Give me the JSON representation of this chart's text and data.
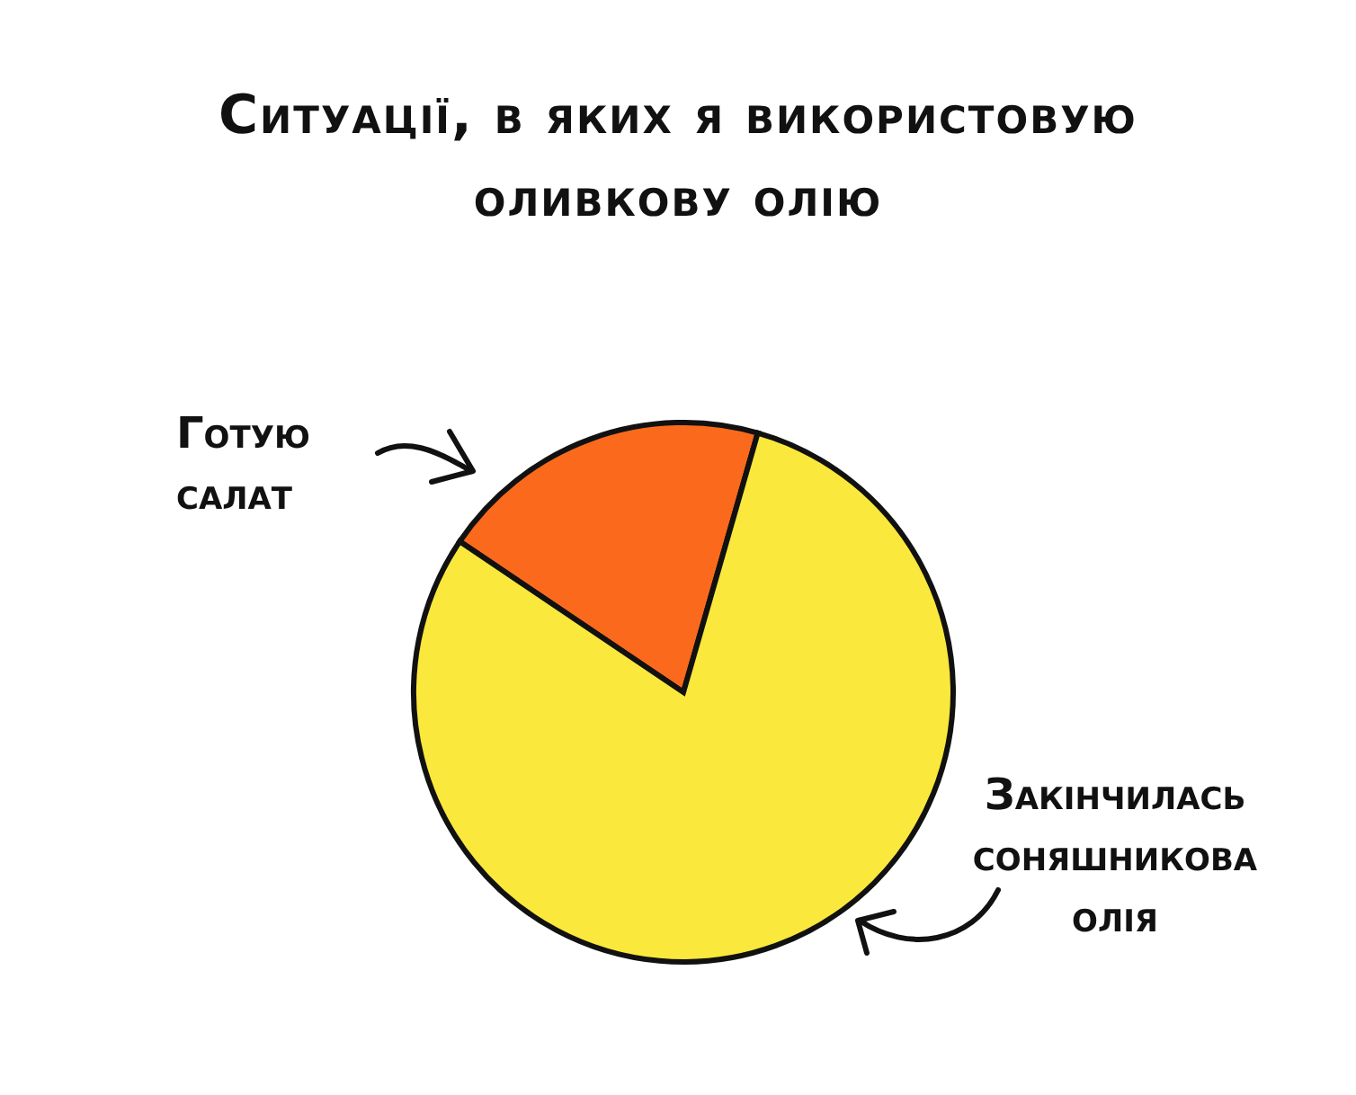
{
  "chart_data": {
    "type": "pie",
    "title": "Ситуації, в яких я використовую оливкову олію",
    "categories": [
      "Готую салат",
      "Закінчилась соняшникова олія"
    ],
    "values": [
      20,
      80
    ],
    "colors": [
      "#fb6a1c",
      "#fbe83c"
    ]
  }
}
